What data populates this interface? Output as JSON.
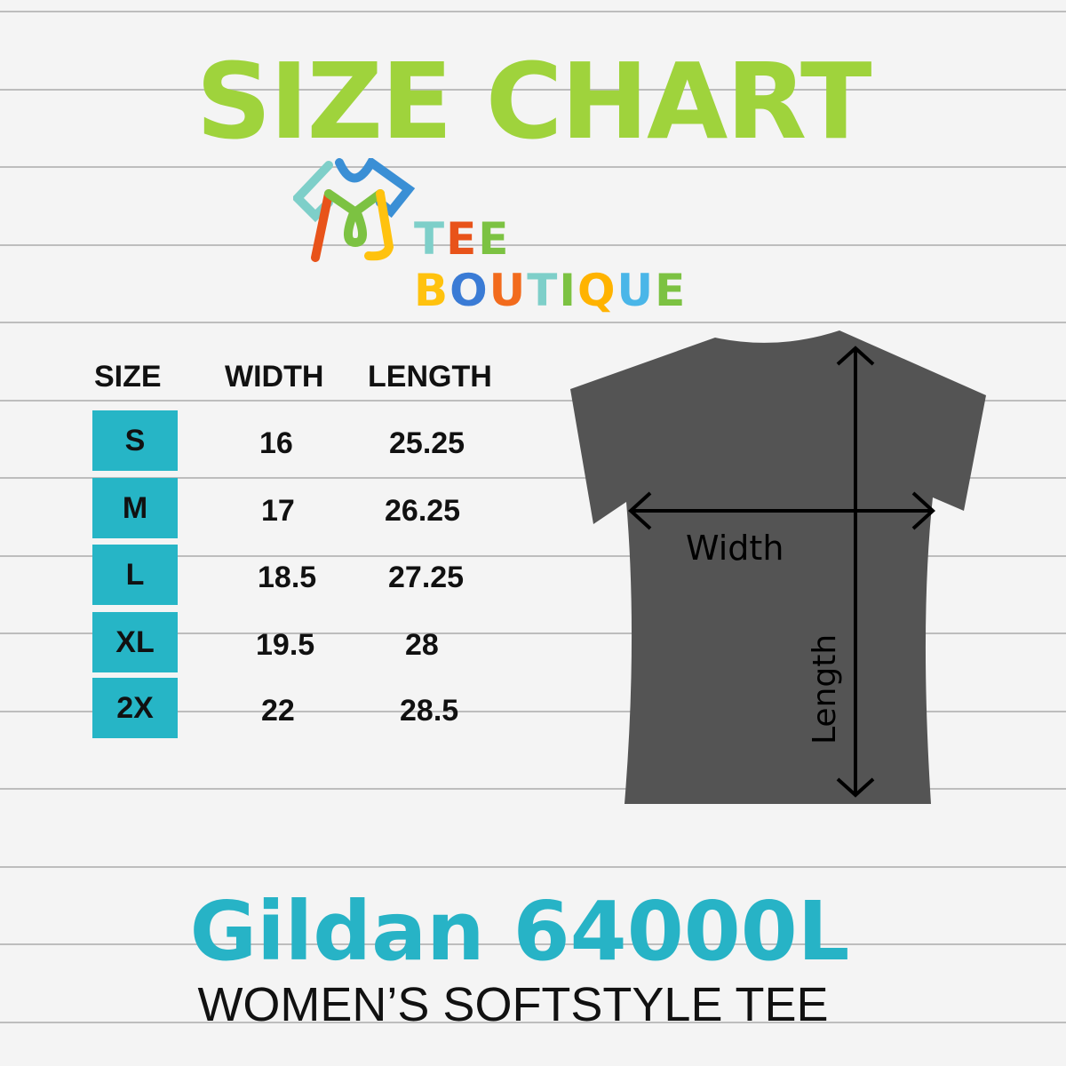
{
  "title": "SIZE CHART",
  "logo": {
    "text": "TEE BOUTIQUE",
    "colors": [
      "#7ecfc9",
      "#e8531a",
      "#7cc242",
      "#ffc20e",
      "#3a7bd5",
      "#f26b1d",
      "#7ecfc9",
      "#7cc242",
      "#ffb300",
      "#4ab6e8",
      "#7cc242"
    ]
  },
  "table": {
    "headers": [
      "SIZE",
      "WIDTH",
      "LENGTH"
    ],
    "rows": [
      {
        "size": "S",
        "width": "16",
        "length": "25.25"
      },
      {
        "size": "M",
        "width": "17",
        "length": "26.25"
      },
      {
        "size": "L",
        "width": "18.5",
        "length": "27.25"
      },
      {
        "size": "XL",
        "width": "19.5",
        "length": "28"
      },
      {
        "size": "2X",
        "width": "22",
        "length": "28.5"
      }
    ],
    "badge_color": "#26b5c6"
  },
  "diagram": {
    "width_label": "Width",
    "length_label": "Length",
    "shirt_color": "#545454"
  },
  "product": {
    "brand": "Gildan 64000L",
    "subtitle": "WOMEN’S SOFTSTYLE TEE",
    "brand_color": "#27b3c6",
    "title_color": "#9fd33c"
  }
}
